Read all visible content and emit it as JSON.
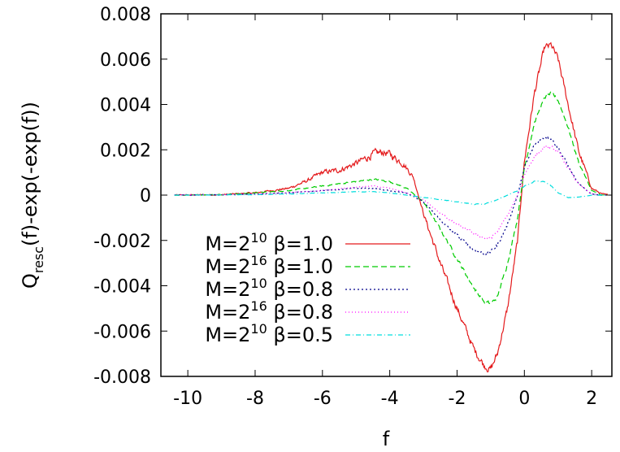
{
  "chart_data": {
    "type": "line",
    "title": "",
    "xlabel": "f",
    "ylabel": {
      "main": "Q",
      "sub": "resc",
      "rest": "(f)-exp(-exp(f))"
    },
    "xlim": [
      -10.8,
      2.6
    ],
    "ylim": [
      -0.008,
      0.008
    ],
    "xticks": [
      -10,
      -8,
      -6,
      -4,
      -2,
      0,
      2
    ],
    "xtick_labels": [
      "-10",
      "-8",
      "-6",
      "-4",
      "-2",
      "0",
      "2"
    ],
    "yticks": [
      -0.008,
      -0.006,
      -0.004,
      -0.002,
      0,
      0.002,
      0.004,
      0.006,
      0.008
    ],
    "ytick_labels": [
      "-0.008",
      "-0.006",
      "-0.004",
      "-0.002",
      "0",
      "0.002",
      "0.004",
      "0.006",
      "0.008"
    ],
    "grid": false,
    "legend_position": "bottom-left",
    "series": [
      {
        "name": "M=2^10 β=1.0",
        "label": {
          "base": "M=2",
          "exp": "10",
          "rest": " β=1.0"
        },
        "color": "#e41a1c",
        "dash": "",
        "noise": 0.00025,
        "x": [
          -10.4,
          -9,
          -8,
          -7,
          -6.5,
          -6,
          -5.5,
          -5,
          -4.5,
          -4.2,
          -4,
          -3.6,
          -3.3,
          -3,
          -2.5,
          -2,
          -1.5,
          -1.2,
          -1.0,
          -0.8,
          -0.5,
          -0.2,
          0,
          0.3,
          0.6,
          0.8,
          1.0,
          1.3,
          1.6,
          2.0,
          2.3,
          2.5
        ],
        "y": [
          0,
          2e-05,
          0.0001,
          0.0003,
          0.0006,
          0.001,
          0.0011,
          0.0014,
          0.0018,
          0.0019,
          0.0018,
          0.0014,
          0.0008,
          -0.0008,
          -0.003,
          -0.005,
          -0.0068,
          -0.0075,
          -0.0077,
          -0.007,
          -0.005,
          -0.002,
          0.0015,
          0.0045,
          0.0065,
          0.0066,
          0.006,
          0.004,
          0.002,
          0.0003,
          5e-05,
          0
        ]
      },
      {
        "name": "M=2^16 β=1.0",
        "label": {
          "base": "M=2",
          "exp": "16",
          "rest": " β=1.0"
        },
        "color": "#00cc00",
        "dash": "7,4",
        "noise": 0.00012,
        "x": [
          -10.4,
          -9,
          -8,
          -7,
          -6,
          -5,
          -4.5,
          -4,
          -3.5,
          -3,
          -2.5,
          -2,
          -1.5,
          -1.2,
          -1.0,
          -0.8,
          -0.5,
          -0.2,
          0,
          0.3,
          0.6,
          0.8,
          1.0,
          1.3,
          1.6,
          2.0,
          2.3,
          2.5
        ],
        "y": [
          0,
          2e-05,
          0.0001,
          0.0002,
          0.0004,
          0.0006,
          0.0007,
          0.0006,
          0.0003,
          -0.0003,
          -0.0015,
          -0.0028,
          -0.0041,
          -0.0047,
          -0.0048,
          -0.0045,
          -0.003,
          -0.001,
          0.0012,
          0.0032,
          0.0043,
          0.0045,
          0.0042,
          0.003,
          0.0015,
          0.0002,
          0,
          0
        ]
      },
      {
        "name": "M=2^10 β=0.8",
        "label": {
          "base": "M=2",
          "exp": "10",
          "rest": " β=0.8"
        },
        "color": "#00008b",
        "dash": "2,3",
        "noise": 0.00012,
        "x": [
          -10.4,
          -9,
          -8,
          -7,
          -6,
          -5,
          -4.5,
          -4,
          -3.5,
          -3,
          -2.5,
          -2,
          -1.5,
          -1.2,
          -1.0,
          -0.8,
          -0.5,
          -0.2,
          0,
          0.3,
          0.6,
          0.8,
          1.0,
          1.3,
          1.6,
          2.0,
          2.3,
          2.5
        ],
        "y": [
          0,
          1e-05,
          5e-05,
          0.0001,
          0.0002,
          0.0003,
          0.0003,
          0.0002,
          0.0001,
          -0.0003,
          -0.0011,
          -0.0018,
          -0.0024,
          -0.0026,
          -0.0025,
          -0.0022,
          -0.0013,
          0,
          0.0012,
          0.0022,
          0.0026,
          0.0025,
          0.0021,
          0.0013,
          0.0005,
          5e-05,
          0,
          0
        ]
      },
      {
        "name": "M=2^16 β=0.8",
        "label": {
          "base": "M=2",
          "exp": "16",
          "rest": " β=0.8"
        },
        "color": "#ff00ff",
        "dash": "1,3",
        "noise": 0.0001,
        "x": [
          -10.4,
          -9,
          -8,
          -7,
          -6,
          -5,
          -4.5,
          -4,
          -3.5,
          -3,
          -2.5,
          -2,
          -1.5,
          -1.2,
          -1.0,
          -0.8,
          -0.5,
          -0.2,
          0,
          0.3,
          0.6,
          0.8,
          1.0,
          1.3,
          1.6,
          2.0,
          2.3,
          2.5
        ],
        "y": [
          0,
          1e-05,
          5e-05,
          0.0001,
          0.0002,
          0.00035,
          0.0004,
          0.0003,
          0.0001,
          -0.0002,
          -0.0008,
          -0.0013,
          -0.0017,
          -0.0019,
          -0.0019,
          -0.0016,
          -0.0009,
          0,
          0.0009,
          0.0017,
          0.0021,
          0.0021,
          0.0019,
          0.0012,
          0.0005,
          5e-05,
          0,
          0
        ]
      },
      {
        "name": "M=2^10 β=0.5",
        "label": {
          "base": "M=2",
          "exp": "10",
          "rest": " β=0.5"
        },
        "color": "#00dddd",
        "dash": "6,3,1,3",
        "noise": 8e-05,
        "x": [
          -10.4,
          -9,
          -8,
          -7,
          -6,
          -5,
          -4.5,
          -4,
          -3.5,
          -3,
          -2.5,
          -2,
          -1.5,
          -1.2,
          -1.0,
          -0.8,
          -0.5,
          -0.2,
          0,
          0.3,
          0.6,
          0.8,
          1.0,
          1.3,
          1.6,
          2.0,
          2.3,
          2.5
        ],
        "y": [
          0,
          1e-05,
          2e-05,
          5e-05,
          0.0001,
          0.00015,
          0.00015,
          0.0001,
          0,
          -0.0001,
          -0.0002,
          -0.0003,
          -0.0004,
          -0.0004,
          -0.0003,
          -0.0002,
          0,
          0.0002,
          0.0004,
          0.0006,
          0.0006,
          0.0004,
          0.0001,
          -0.0001,
          -0.0001,
          0,
          0,
          0
        ]
      }
    ]
  }
}
